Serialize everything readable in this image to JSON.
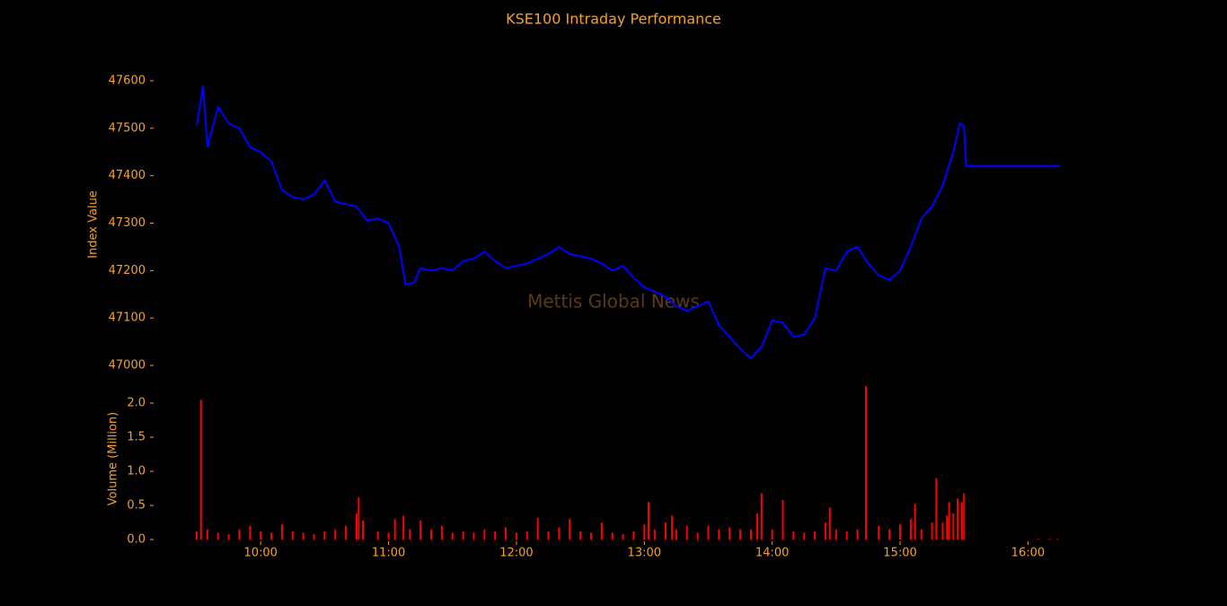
{
  "chart_data": [
    {
      "type": "line",
      "title": "KSE100 Intraday Performance",
      "ylabel": "Index Value",
      "annotation": "Mettis Global News",
      "color": "#0000ff",
      "xlim": [
        "09:30",
        "16:15"
      ],
      "ylim": [
        46980,
        47620
      ],
      "yticks": [
        47000,
        47100,
        47200,
        47300,
        47400,
        47500,
        47600
      ],
      "x": [
        "09:30",
        "09:33",
        "09:35",
        "09:40",
        "09:45",
        "09:50",
        "09:55",
        "10:00",
        "10:05",
        "10:10",
        "10:15",
        "10:20",
        "10:25",
        "10:30",
        "10:35",
        "10:40",
        "10:45",
        "10:50",
        "10:55",
        "11:00",
        "11:05",
        "11:08",
        "11:12",
        "11:15",
        "11:20",
        "11:25",
        "11:30",
        "11:35",
        "11:40",
        "11:45",
        "11:50",
        "11:55",
        "12:00",
        "12:05",
        "12:10",
        "12:15",
        "12:20",
        "12:25",
        "12:30",
        "12:35",
        "12:40",
        "12:45",
        "12:50",
        "12:55",
        "13:00",
        "13:05",
        "13:10",
        "13:15",
        "13:20",
        "13:25",
        "13:30",
        "13:35",
        "13:40",
        "13:45",
        "13:50",
        "13:55",
        "14:00",
        "14:05",
        "14:10",
        "14:15",
        "14:20",
        "14:25",
        "14:30",
        "14:35",
        "14:40",
        "14:45",
        "14:50",
        "14:55",
        "15:00",
        "15:05",
        "15:10",
        "15:15",
        "15:20",
        "15:25",
        "15:28",
        "15:30",
        "15:31",
        "16:15"
      ],
      "values": [
        47505,
        47590,
        47460,
        47545,
        47510,
        47500,
        47460,
        47450,
        47430,
        47370,
        47355,
        47350,
        47360,
        47390,
        47345,
        47340,
        47335,
        47305,
        47310,
        47300,
        47250,
        47170,
        47175,
        47205,
        47200,
        47205,
        47200,
        47220,
        47225,
        47240,
        47220,
        47205,
        47210,
        47215,
        47225,
        47235,
        47250,
        47235,
        47230,
        47225,
        47215,
        47200,
        47210,
        47185,
        47165,
        47155,
        47145,
        47125,
        47115,
        47125,
        47135,
        47085,
        47060,
        47035,
        47015,
        47040,
        47095,
        47090,
        47060,
        47065,
        47100,
        47205,
        47200,
        47240,
        47250,
        47215,
        47190,
        47180,
        47200,
        47250,
        47310,
        47335,
        47380,
        47450,
        47510,
        47505,
        47420,
        47420
      ]
    },
    {
      "type": "bar",
      "ylabel": "Volume (Million)",
      "color": "#ff0000",
      "xlim": [
        "09:30",
        "16:15"
      ],
      "xticks": [
        "10:00",
        "11:00",
        "12:00",
        "13:00",
        "14:00",
        "15:00",
        "16:00"
      ],
      "ylim": [
        0,
        2.25
      ],
      "yticks": [
        {
          "value": 0,
          "label": "0.0"
        },
        {
          "value": 0.5,
          "label": "0.5"
        },
        {
          "value": 1,
          "label": "1.0"
        },
        {
          "value": 1.5,
          "label": "1.5"
        },
        {
          "value": 2,
          "label": "2.0"
        }
      ],
      "x": [
        "09:30",
        "09:32",
        "09:35",
        "09:40",
        "09:45",
        "09:50",
        "09:55",
        "10:00",
        "10:05",
        "10:10",
        "10:15",
        "10:20",
        "10:25",
        "10:30",
        "10:35",
        "10:40",
        "10:45",
        "10:46",
        "10:48",
        "10:55",
        "11:00",
        "11:03",
        "11:07",
        "11:10",
        "11:15",
        "11:20",
        "11:25",
        "11:30",
        "11:35",
        "11:40",
        "11:45",
        "11:50",
        "11:55",
        "12:00",
        "12:05",
        "12:10",
        "12:15",
        "12:20",
        "12:25",
        "12:30",
        "12:35",
        "12:40",
        "12:45",
        "12:50",
        "12:55",
        "13:00",
        "13:02",
        "13:05",
        "13:10",
        "13:13",
        "13:15",
        "13:20",
        "13:25",
        "13:30",
        "13:35",
        "13:40",
        "13:45",
        "13:50",
        "13:53",
        "13:55",
        "14:00",
        "14:05",
        "14:10",
        "14:15",
        "14:20",
        "14:25",
        "14:27",
        "14:30",
        "14:35",
        "14:40",
        "14:44",
        "14:50",
        "14:55",
        "15:00",
        "15:05",
        "15:07",
        "15:10",
        "15:15",
        "15:17",
        "15:20",
        "15:22",
        "15:23",
        "15:25",
        "15:27",
        "15:29",
        "15:30",
        "16:05",
        "16:10",
        "16:14"
      ],
      "values": [
        0.12,
        2.05,
        0.15,
        0.1,
        0.08,
        0.15,
        0.2,
        0.12,
        0.1,
        0.22,
        0.12,
        0.1,
        0.08,
        0.12,
        0.15,
        0.2,
        0.38,
        0.62,
        0.28,
        0.12,
        0.1,
        0.3,
        0.35,
        0.15,
        0.28,
        0.15,
        0.2,
        0.1,
        0.12,
        0.1,
        0.15,
        0.12,
        0.18,
        0.1,
        0.12,
        0.32,
        0.12,
        0.18,
        0.3,
        0.12,
        0.1,
        0.25,
        0.1,
        0.08,
        0.12,
        0.22,
        0.55,
        0.15,
        0.25,
        0.35,
        0.15,
        0.2,
        0.1,
        0.2,
        0.15,
        0.18,
        0.15,
        0.15,
        0.38,
        0.68,
        0.15,
        0.58,
        0.12,
        0.1,
        0.12,
        0.25,
        0.47,
        0.15,
        0.12,
        0.15,
        2.25,
        0.2,
        0.15,
        0.22,
        0.3,
        0.52,
        0.15,
        0.25,
        0.9,
        0.25,
        0.35,
        0.55,
        0.38,
        0.6,
        0.55,
        0.68,
        0.01,
        0.01,
        0.01
      ]
    }
  ]
}
